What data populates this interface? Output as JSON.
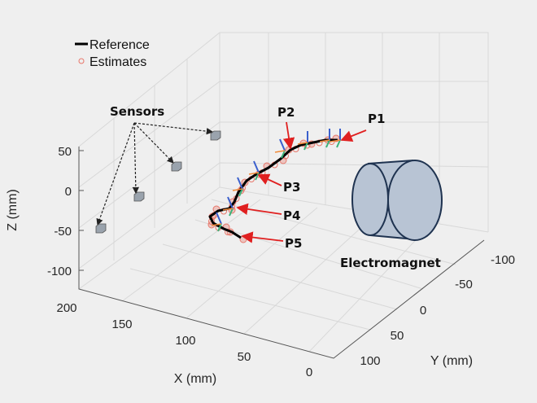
{
  "chart_data": {
    "type": "line3d",
    "title": "",
    "xlabel": "X (mm)",
    "ylabel": "Y (mm)",
    "zlabel": "Z (mm)",
    "xticks": [
      "200",
      "150",
      "100",
      "50",
      "0"
    ],
    "yticks": [
      "-100",
      "-50",
      "0",
      "50",
      "100"
    ],
    "zticks": [
      "50",
      "0",
      "-50",
      "-100"
    ],
    "xlim": [
      0,
      200
    ],
    "ylim": [
      -100,
      100
    ],
    "zlim": [
      -100,
      50
    ],
    "grid": true,
    "legend": {
      "placement": "top-left",
      "entries": [
        {
          "name": "Reference",
          "marker": "line",
          "color": "#000000"
        },
        {
          "name": "Estimates",
          "marker": "circle",
          "color": "#e8776b"
        }
      ]
    },
    "annotations": {
      "sensors": "Sensors",
      "electromagnet": "Electromagnet",
      "points": [
        "P1",
        "P2",
        "P3",
        "P4",
        "P5"
      ]
    },
    "colors": {
      "reference": "#000000",
      "estimates": "#e8776b",
      "arrow": "#e02020",
      "magnet_fill": "#b8c4d4",
      "magnet_edge": "#1f3350",
      "sensor": "#9aa3ad"
    }
  }
}
